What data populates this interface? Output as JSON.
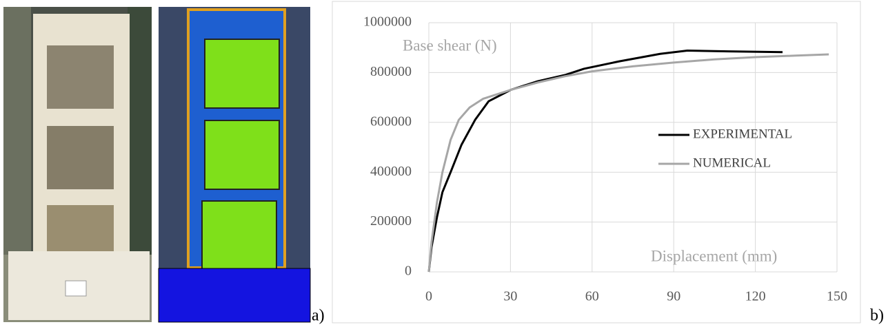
{
  "panel_labels": [
    "a)",
    "b)"
  ],
  "chart_data": {
    "type": "line",
    "y_label": "Base shear (N)",
    "x_label": "Displacement (mm)",
    "series": [
      {
        "name": "EXPERIMENTAL",
        "color": "#000000",
        "x": [
          0,
          1,
          3,
          5,
          8,
          12,
          17,
          22,
          30,
          40,
          50,
          57,
          70,
          85,
          95,
          110,
          130
        ],
        "values": [
          0,
          100000,
          220000,
          320000,
          400000,
          510000,
          610000,
          685000,
          730000,
          765000,
          790000,
          815000,
          845000,
          875000,
          888000,
          885000,
          882000
        ]
      },
      {
        "name": "NUMERICAL",
        "color": "#a6a6a6",
        "x": [
          0,
          1,
          3,
          5,
          8,
          11,
          15,
          20,
          30,
          40,
          50,
          60,
          75,
          90,
          105,
          120,
          135,
          147
        ],
        "values": [
          0,
          120000,
          280000,
          400000,
          530000,
          610000,
          660000,
          695000,
          730000,
          760000,
          785000,
          805000,
          825000,
          840000,
          853000,
          862000,
          868000,
          873000
        ]
      }
    ],
    "xlim": [
      0,
      150
    ],
    "xticks": [
      0,
      30,
      60,
      90,
      120,
      150
    ],
    "ylim": [
      0,
      1000000
    ],
    "yticks": [
      0,
      200000,
      400000,
      600000,
      800000,
      1000000
    ],
    "grid": true
  }
}
